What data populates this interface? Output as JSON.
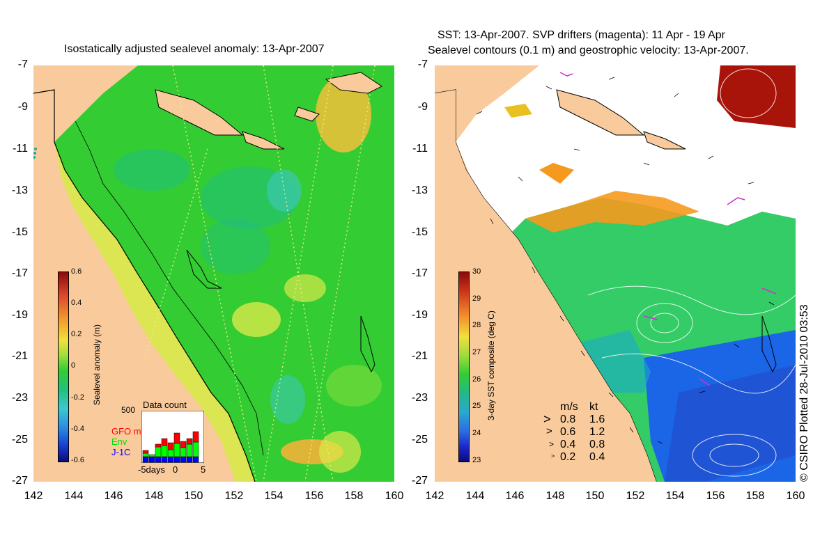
{
  "left_panel": {
    "title": "Isostatically adjusted sealevel anomaly: 13-Apr-2007",
    "colorbar": {
      "label": "Sealevel anomaly (m)",
      "ticks": [
        "0.6",
        "0.4",
        "0.2",
        "0",
        "-0.2",
        "-0.4",
        "-0.6"
      ]
    },
    "data_count": {
      "title": "Data count",
      "ymax_label": "500",
      "legend": [
        {
          "label": "GFO mm",
          "color": "#ff0000"
        },
        {
          "label": "Env",
          "color": "#00ff00"
        },
        {
          "label": "J-1C",
          "color": "#0000ff"
        }
      ],
      "x_labels": [
        "-5days",
        "0",
        "5"
      ]
    }
  },
  "right_panel": {
    "title_line1": "SST: 13-Apr-2007. SVP drifters (magenta): 11 Apr - 19 Apr",
    "title_line2": "Sealevel contours (0.1 m) and geostrophic velocity: 13-Apr-2007.",
    "colorbar": {
      "label": "3-day SST composite (deg C)",
      "ticks": [
        "30",
        "29",
        "28",
        "27",
        "26",
        "25",
        "24",
        "23"
      ]
    },
    "velocity_legend": {
      "headers": [
        "m/s",
        "kt"
      ],
      "rows": [
        [
          "0.8",
          "1.6"
        ],
        [
          "0.6",
          "1.2"
        ],
        [
          "0.4",
          "0.8"
        ],
        [
          "0.2",
          "0.4"
        ]
      ]
    }
  },
  "axes": {
    "y_ticks": [
      "-7",
      "-9",
      "-11",
      "-13",
      "-15",
      "-17",
      "-19",
      "-21",
      "-23",
      "-25",
      "-27"
    ],
    "x_ticks": [
      "142",
      "144",
      "146",
      "148",
      "150",
      "152",
      "154",
      "156",
      "158",
      "160"
    ]
  },
  "credit": "© CSIRO Plotted 28-Jul-2010 03:53",
  "colors": {
    "land": "#f9cb9c",
    "sla_green": "#33cc33",
    "sla_yellow": "#d8e84a",
    "sst_blue": "#1a66e6",
    "sst_green": "#33cc66",
    "sst_orange": "#f59a1e",
    "sst_darkred": "#a81409"
  }
}
